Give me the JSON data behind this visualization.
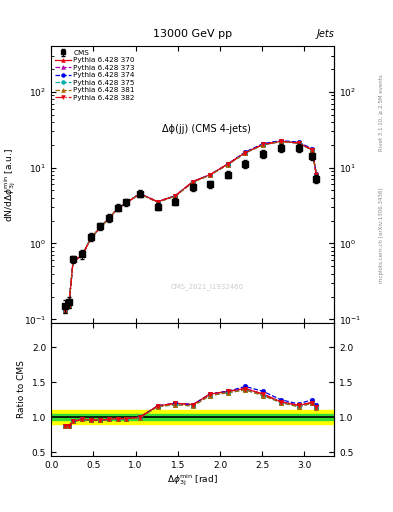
{
  "title_top": "13000 GeV pp",
  "title_right": "Jets",
  "plot_title": "Δϕ(jj) (CMS 4-jets)",
  "watermark": "CMS_2021_I1932460",
  "ylabel_main": "dN/dΔϕ$^{\\rm min}_{\\rm 3j}$ [a.u.]",
  "ylabel_ratio": "Ratio to CMS",
  "xlabel": "Δϕ$^{\\rm min}_{\\rm 3j}$ [rad]",
  "right_label_main": "Rivet 3.1.10, ≥ 2.5M events",
  "right_label_sub": "mcplots.cern.ch [arXiv:1306.3436]",
  "cms_x": [
    0.16,
    0.21,
    0.26,
    0.37,
    0.47,
    0.58,
    0.68,
    0.79,
    0.89,
    1.05,
    1.26,
    1.47,
    1.68,
    1.88,
    2.09,
    2.3,
    2.51,
    2.72,
    2.93,
    3.09,
    3.14
  ],
  "cms_y": [
    0.15,
    0.17,
    0.62,
    0.72,
    1.22,
    1.68,
    2.18,
    2.98,
    3.48,
    4.55,
    3.05,
    3.55,
    5.55,
    6.05,
    8.1,
    11.2,
    15.2,
    18.2,
    18.2,
    14.2,
    7.1
  ],
  "cms_yerr": [
    0.03,
    0.03,
    0.07,
    0.09,
    0.14,
    0.19,
    0.24,
    0.33,
    0.38,
    0.5,
    0.32,
    0.38,
    0.6,
    0.68,
    0.9,
    1.25,
    1.7,
    2.05,
    2.05,
    1.6,
    0.8
  ],
  "x": [
    0.16,
    0.21,
    0.26,
    0.37,
    0.47,
    0.58,
    0.68,
    0.79,
    0.89,
    1.05,
    1.26,
    1.47,
    1.68,
    1.88,
    2.09,
    2.3,
    2.51,
    2.72,
    2.93,
    3.09,
    3.14
  ],
  "py370_y": [
    0.13,
    0.15,
    0.58,
    0.7,
    1.17,
    1.62,
    2.12,
    2.92,
    3.42,
    4.55,
    3.55,
    4.25,
    6.55,
    8.05,
    11.1,
    15.8,
    20.2,
    22.2,
    21.2,
    17.2,
    8.1
  ],
  "py373_y": [
    0.13,
    0.15,
    0.58,
    0.7,
    1.17,
    1.62,
    2.12,
    2.92,
    3.42,
    4.55,
    3.55,
    4.25,
    6.55,
    8.05,
    11.1,
    15.8,
    20.2,
    22.2,
    21.2,
    17.2,
    8.1
  ],
  "py374_y": [
    0.13,
    0.15,
    0.58,
    0.7,
    1.17,
    1.62,
    2.12,
    2.92,
    3.42,
    4.55,
    3.55,
    4.25,
    6.55,
    8.05,
    11.1,
    16.1,
    20.7,
    22.7,
    21.7,
    17.7,
    8.3
  ],
  "py375_y": [
    0.13,
    0.15,
    0.58,
    0.7,
    1.17,
    1.62,
    2.12,
    2.92,
    3.42,
    4.5,
    3.5,
    4.2,
    6.45,
    7.95,
    10.9,
    15.6,
    20.0,
    22.0,
    21.0,
    17.0,
    8.0
  ],
  "py381_y": [
    0.13,
    0.15,
    0.58,
    0.7,
    1.17,
    1.62,
    2.12,
    2.92,
    3.42,
    4.5,
    3.5,
    4.2,
    6.45,
    7.95,
    10.9,
    15.6,
    20.0,
    22.0,
    21.0,
    17.0,
    8.0
  ],
  "py382_y": [
    0.13,
    0.15,
    0.58,
    0.7,
    1.17,
    1.62,
    2.12,
    2.92,
    3.42,
    4.55,
    3.55,
    4.25,
    6.55,
    8.05,
    11.1,
    15.8,
    20.2,
    22.2,
    21.2,
    17.2,
    8.1
  ],
  "ratio370": [
    0.87,
    0.88,
    0.94,
    0.97,
    0.96,
    0.96,
    0.97,
    0.98,
    0.98,
    1.0,
    1.16,
    1.2,
    1.18,
    1.33,
    1.37,
    1.41,
    1.33,
    1.22,
    1.17,
    1.21,
    1.14
  ],
  "ratio373": [
    0.87,
    0.88,
    0.94,
    0.97,
    0.96,
    0.96,
    0.97,
    0.98,
    0.98,
    1.0,
    1.16,
    1.2,
    1.18,
    1.33,
    1.37,
    1.41,
    1.33,
    1.22,
    1.17,
    1.21,
    1.14
  ],
  "ratio374": [
    0.87,
    0.88,
    0.94,
    0.97,
    0.96,
    0.96,
    0.97,
    0.98,
    0.98,
    1.0,
    1.16,
    1.2,
    1.18,
    1.33,
    1.37,
    1.44,
    1.37,
    1.25,
    1.19,
    1.25,
    1.17
  ],
  "ratio375": [
    0.87,
    0.88,
    0.94,
    0.97,
    0.96,
    0.96,
    0.97,
    0.98,
    0.98,
    0.99,
    1.15,
    1.18,
    1.16,
    1.31,
    1.35,
    1.39,
    1.31,
    1.21,
    1.15,
    1.2,
    1.13
  ],
  "ratio381": [
    0.87,
    0.88,
    0.94,
    0.97,
    0.96,
    0.96,
    0.97,
    0.98,
    0.98,
    0.99,
    1.15,
    1.18,
    1.16,
    1.31,
    1.35,
    1.39,
    1.31,
    1.21,
    1.15,
    1.2,
    1.13
  ],
  "ratio382": [
    0.87,
    0.88,
    0.94,
    0.97,
    0.96,
    0.96,
    0.97,
    0.98,
    0.98,
    1.0,
    1.16,
    1.2,
    1.18,
    1.33,
    1.37,
    1.41,
    1.33,
    1.22,
    1.17,
    1.21,
    1.14
  ],
  "cms_stat_lo": 0.96,
  "cms_stat_hi": 1.04,
  "cms_sys_lo": 0.9,
  "cms_sys_hi": 1.1,
  "color_370": "#e8000b",
  "color_373": "#b000b0",
  "color_374": "#0000e8",
  "color_375": "#00aaaa",
  "color_381": "#aa6600",
  "color_382": "#e8000b",
  "ls_370": "-",
  "mk_370": "^",
  "ls_373": "--",
  "mk_373": "^",
  "ls_374": "--",
  "mk_374": "o",
  "ls_375": "--",
  "mk_375": "o",
  "ls_381": "--",
  "mk_381": "^",
  "ls_382": "-.",
  "mk_382": "v",
  "xlim": [
    0.0,
    3.35
  ],
  "ylim_main": [
    0.09,
    400
  ],
  "ylim_ratio": [
    0.45,
    2.35
  ],
  "yticks_ratio": [
    0.5,
    1.0,
    1.5,
    2.0
  ]
}
